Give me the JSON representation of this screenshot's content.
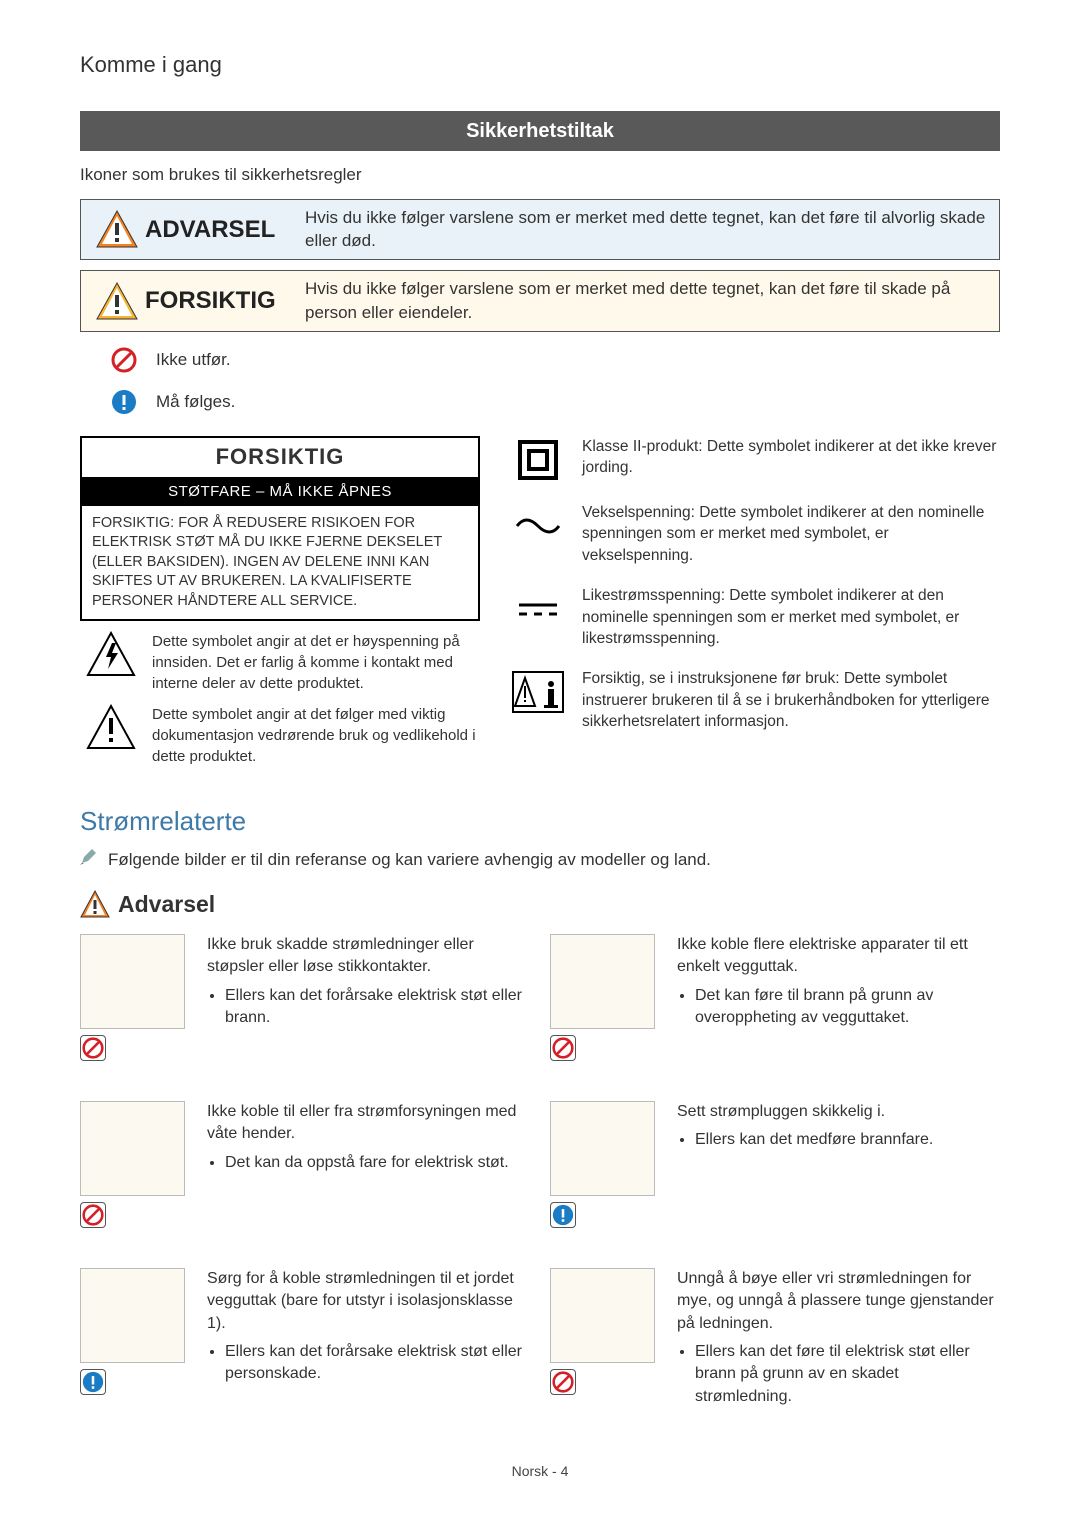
{
  "colors": {
    "banner_bg": "#595959",
    "banner_text": "#ffffff",
    "warn_bg": "#e8f2f8",
    "caution_bg": "#fff9eb",
    "blue_heading": "#3d7aa8",
    "prohibit_red": "#d62027",
    "mandatory_blue": "#1a7cc4",
    "warn_orange": "#f58220",
    "warn_yellow": "#f9b233"
  },
  "header": {
    "title": "Komme i gang"
  },
  "safety_banner": "Sikkerhetstiltak",
  "icons_intro": "Ikoner som brukes til sikkerhetsregler",
  "warnings": {
    "advarsel": {
      "label": "ADVARSEL",
      "desc": "Hvis du ikke følger varslene som er merket med dette tegnet, kan det føre til alvorlig skade eller død."
    },
    "forsiktig": {
      "label": "FORSIKTIG",
      "desc": "Hvis du ikke følger varslene som er merket med dette tegnet, kan det føre til skade på person eller eiendeler."
    }
  },
  "legend": {
    "prohibit": "Ikke utfør.",
    "mandatory": "Må følges."
  },
  "caution_box": {
    "title": "FORSIKTIG",
    "subtitle": "STØTFARE – MÅ IKKE ÅPNES",
    "body": "FORSIKTIG: FOR Å REDUSERE RISIKOEN FOR ELEKTRISK STØT MÅ DU IKKE FJERNE DEKSELET (ELLER BAKSIDEN). INGEN AV DELENE INNI KAN SKIFTES UT AV BRUKEREN. LA KVALIFISERTE PERSONER HÅNDTERE ALL SERVICE.",
    "sym_hv": "Dette symbolet angir at det er høyspenning på innsiden. Det er farlig å komme i kontakt med interne deler av dette produktet.",
    "sym_doc": "Dette symbolet angir at det følger med viktig dokumentasjon vedrørende bruk og vedlikehold i dette produktet."
  },
  "right_symbols": {
    "class2": "Klasse II-produkt: Dette symbolet indikerer at det ikke krever jording.",
    "ac": "Vekselspenning: Dette symbolet indikerer at den nominelle spenningen som er merket med symbolet, er vekselspenning.",
    "dc": "Likestrømsspenning: Dette symbolet indikerer at den nominelle spenningen som er merket med symbolet, er likestrømsspenning.",
    "manual": "Forsiktig, se i instruksjonene før bruk: Dette symbolet instruerer brukeren til å se i brukerhåndboken for ytterligere sikkerhetsrelatert informasjon."
  },
  "power_section": {
    "heading": "Strømrelaterte",
    "note": "Følgende bilder er til din referanse og kan variere avhengig av modeller og land.",
    "subheading": "Advarsel"
  },
  "power_items": [
    {
      "badge": "prohibit",
      "text": "Ikke bruk skadde strømledninger eller støpsler eller løse stikkontakter.",
      "bullets": [
        "Ellers kan det forårsake elektrisk støt eller brann."
      ]
    },
    {
      "badge": "prohibit",
      "text": "Ikke koble flere elektriske apparater til ett enkelt vegguttak.",
      "bullets": [
        "Det kan føre til brann på grunn av overoppheting av vegguttaket."
      ]
    },
    {
      "badge": "prohibit",
      "text": "Ikke koble til eller fra strømforsyningen med våte hender.",
      "bullets": [
        "Det kan da oppstå fare for elektrisk støt."
      ]
    },
    {
      "badge": "mandatory",
      "text": "Sett strømpluggen skikkelig i.",
      "bullets": [
        "Ellers kan det medføre brannfare."
      ]
    },
    {
      "badge": "mandatory",
      "text": "Sørg for å koble strømledningen til et jordet vegguttak (bare for utstyr i isolasjonsklasse 1).",
      "bullets": [
        "Ellers kan det forårsake elektrisk støt eller personskade."
      ]
    },
    {
      "badge": "prohibit",
      "text": "Unngå å bøye eller vri strømledningen for mye, og unngå å plassere tunge gjenstander på ledningen.",
      "bullets": [
        "Ellers kan det føre til elektrisk støt eller brann på grunn av en skadet strømledning."
      ]
    }
  ],
  "footer": "Norsk - 4"
}
